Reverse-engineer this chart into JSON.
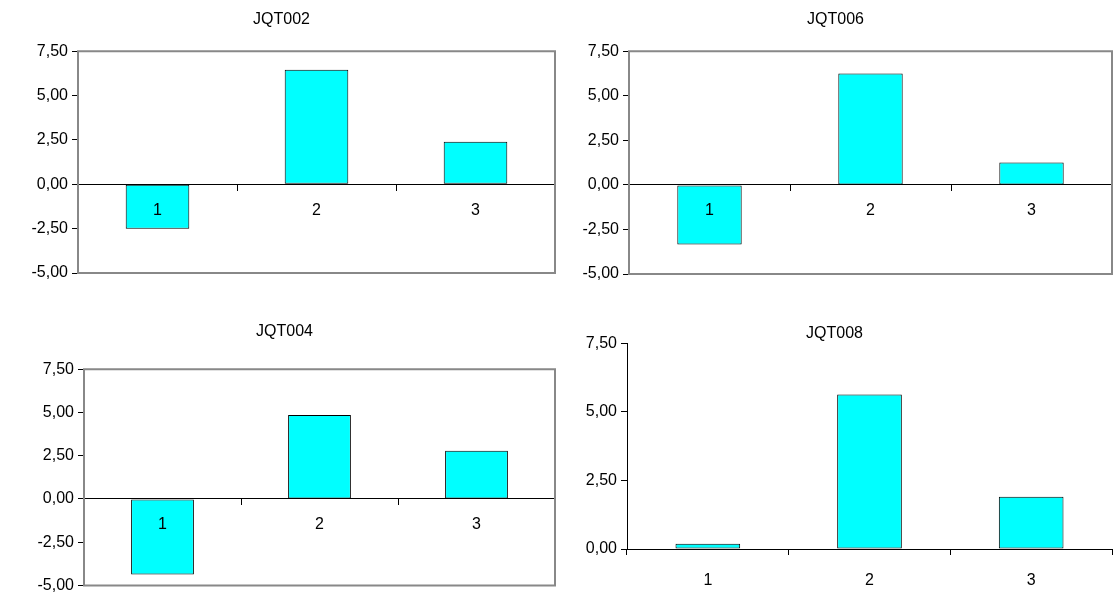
{
  "chart_data": [
    {
      "type": "bar",
      "title": "JQT002",
      "categories": [
        "1",
        "2",
        "3"
      ],
      "values": [
        -2.5,
        6.45,
        2.4
      ],
      "color": "#00ffff",
      "ylim": [
        -5,
        7.5
      ],
      "yticks": [
        {
          "value": -5,
          "label": "-5,00"
        },
        {
          "value": -2.5,
          "label": "-2,50"
        },
        {
          "value": 0,
          "label": "0,00"
        },
        {
          "value": 2.5,
          "label": "2,50"
        },
        {
          "value": 5,
          "label": "5,00"
        },
        {
          "value": 7.5,
          "label": "7,50"
        }
      ],
      "grid": false,
      "legend": false
    },
    {
      "type": "bar",
      "title": "JQT006",
      "categories": [
        "1",
        "2",
        "3"
      ],
      "values": [
        -3.35,
        6.25,
        1.26
      ],
      "color": "#00ffff",
      "ylim": [
        -5,
        7.5
      ],
      "yticks": [
        {
          "value": -5,
          "label": "-5,00"
        },
        {
          "value": -2.5,
          "label": "-2,50"
        },
        {
          "value": 0,
          "label": "0,00"
        },
        {
          "value": 2.5,
          "label": "2,50"
        },
        {
          "value": 5,
          "label": "5,00"
        },
        {
          "value": 7.5,
          "label": "7,50"
        }
      ],
      "grid": false,
      "legend": false
    },
    {
      "type": "bar",
      "title": "JQT004",
      "categories": [
        "1",
        "2",
        "3"
      ],
      "values": [
        -4.37,
        4.85,
        2.79
      ],
      "color": "#00ffff",
      "ylim": [
        -5,
        7.5
      ],
      "yticks": [
        {
          "value": -5,
          "label": "-5,00"
        },
        {
          "value": -2.5,
          "label": "-2,50"
        },
        {
          "value": 0,
          "label": "0,00"
        },
        {
          "value": 2.5,
          "label": "2,50"
        },
        {
          "value": 5,
          "label": "5,00"
        },
        {
          "value": 7.5,
          "label": "7,50"
        }
      ],
      "grid": false,
      "legend": false
    },
    {
      "type": "bar",
      "title": "JQT008",
      "categories": [
        "1",
        "2",
        "3"
      ],
      "values": [
        0.19,
        5.63,
        1.9
      ],
      "color": "#00ffff",
      "ylim": [
        0,
        7.5
      ],
      "yticks": [
        {
          "value": 0,
          "label": "0,00"
        },
        {
          "value": 2.5,
          "label": "2,50"
        },
        {
          "value": 5,
          "label": "5,00"
        },
        {
          "value": 7.5,
          "label": "7,50"
        }
      ],
      "grid": false,
      "legend": false
    }
  ]
}
